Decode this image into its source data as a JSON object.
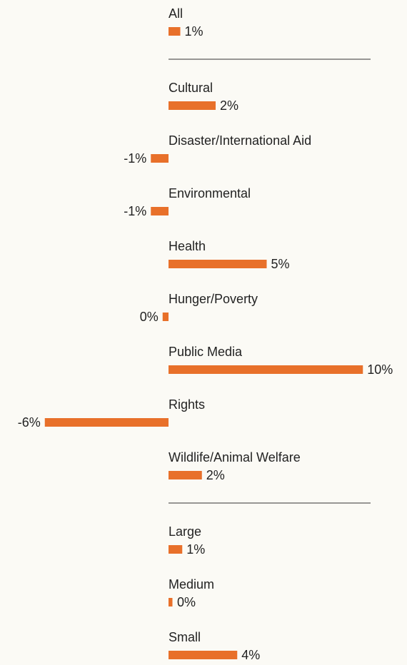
{
  "chart_data": {
    "type": "bar",
    "color": "#e8702a",
    "groups": [
      {
        "categories": [
          "All"
        ],
        "values": [
          0.6
        ],
        "value_labels": [
          "1%"
        ]
      },
      {
        "categories": [
          "Cultural",
          "Disaster/International Aid",
          "Environmental",
          "Health",
          "Hunger/Poverty",
          "Public Media",
          "Rights",
          "Wildlife/Animal Welfare"
        ],
        "values": [
          2.4,
          -0.9,
          -0.9,
          5.0,
          -0.3,
          9.9,
          -6.3,
          1.7
        ],
        "value_labels": [
          "2%",
          "-1%",
          "-1%",
          "5%",
          "0%",
          "10%",
          "-6%",
          "2%"
        ]
      },
      {
        "categories": [
          "Large",
          "Medium",
          "Small"
        ],
        "values": [
          0.7,
          0.2,
          3.5
        ],
        "value_labels": [
          "1%",
          "0%",
          "4%"
        ]
      }
    ]
  }
}
